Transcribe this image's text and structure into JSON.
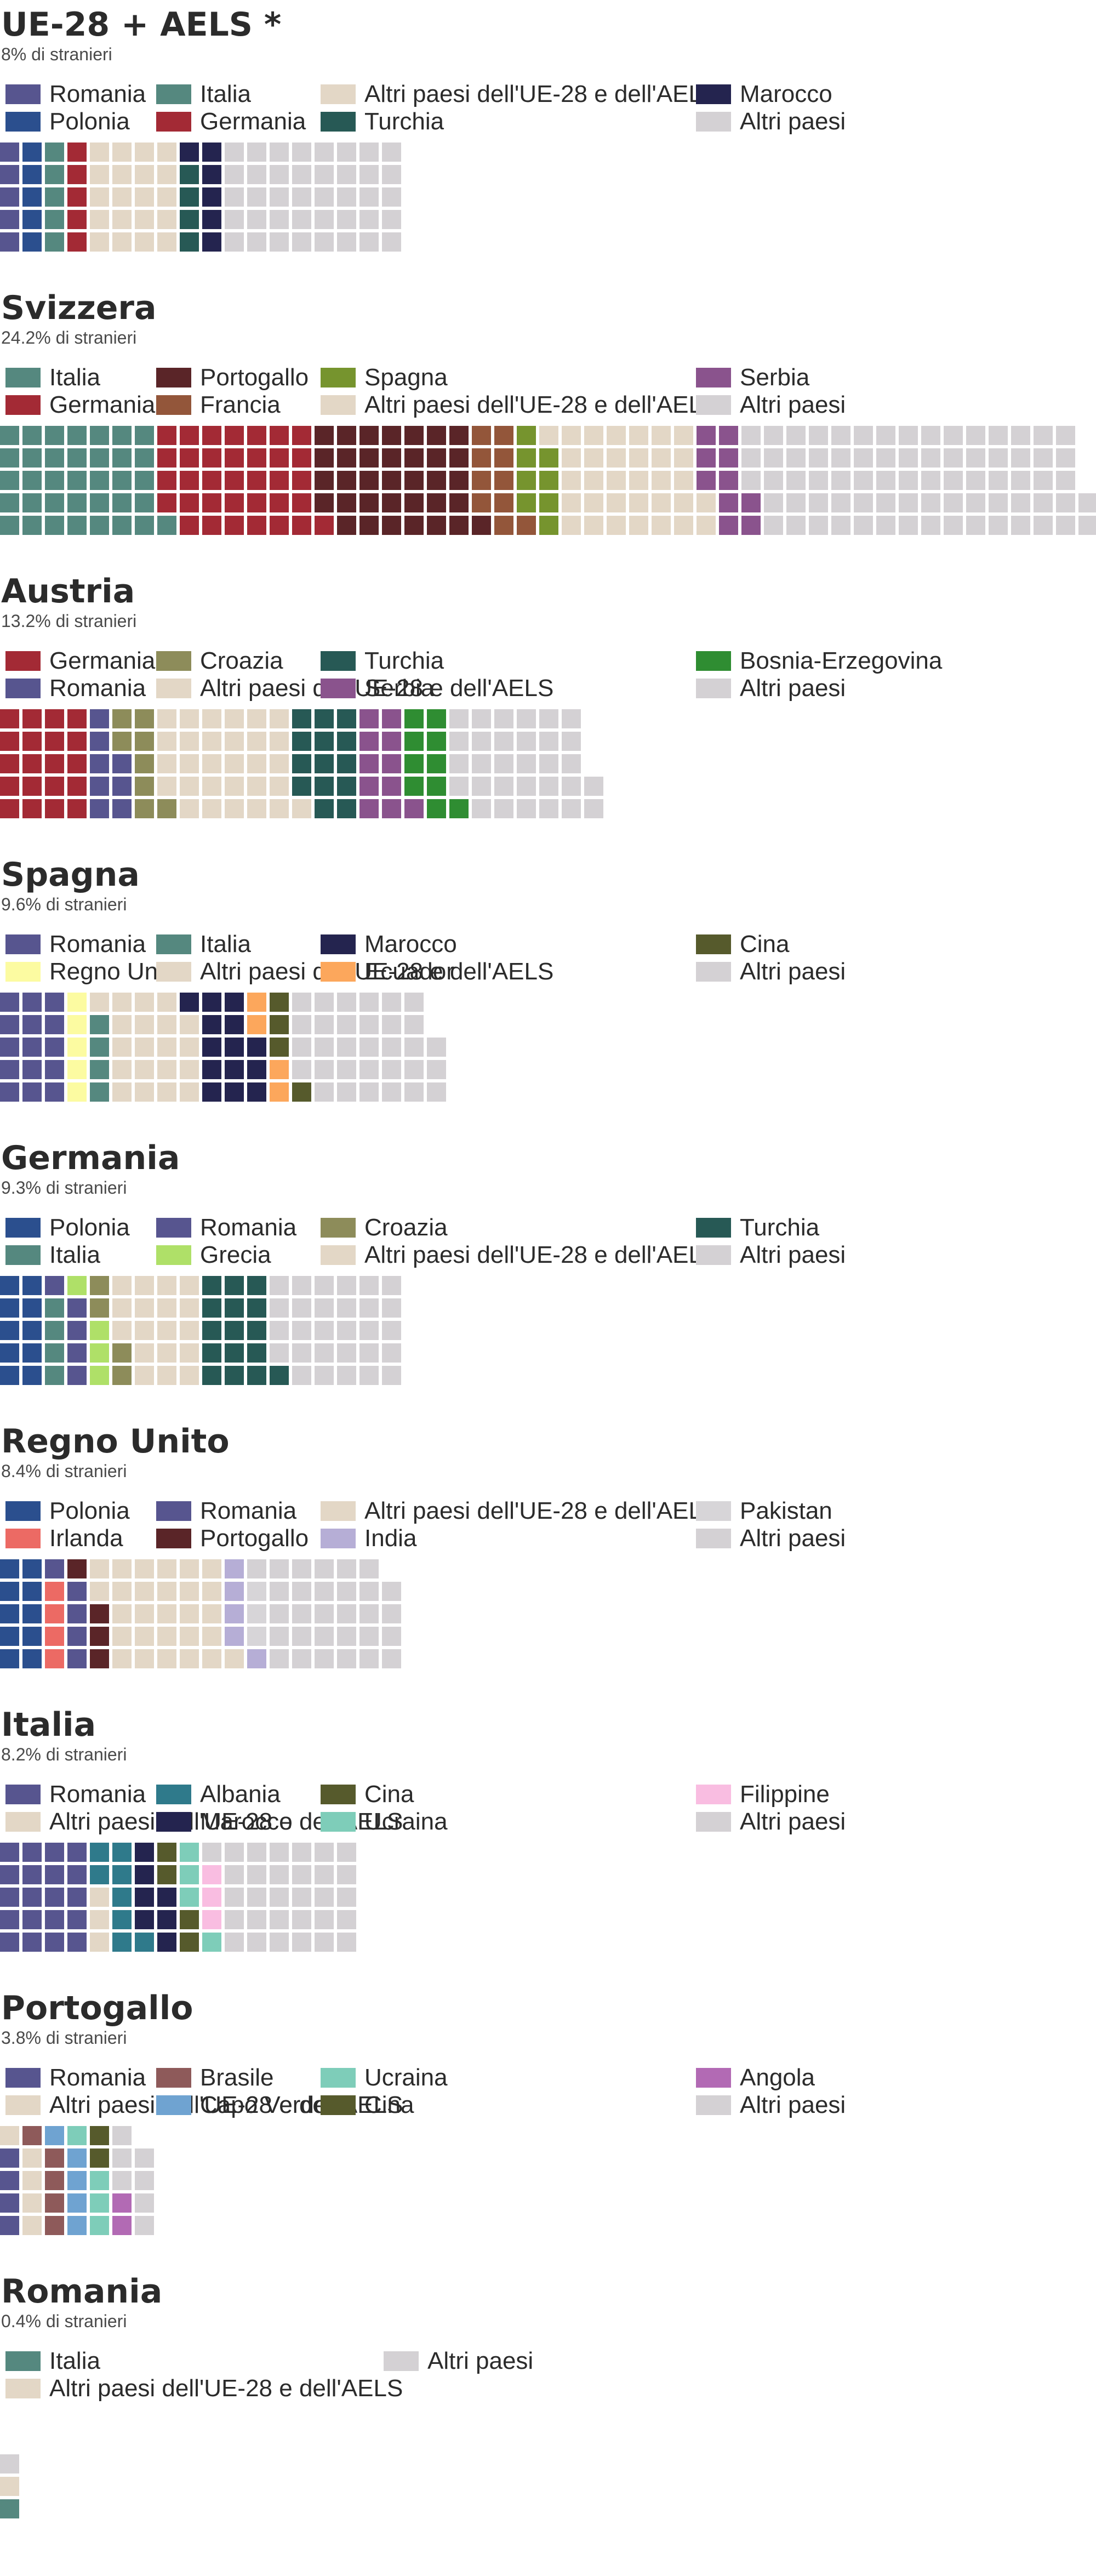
{
  "colors": {
    "Romania": "#57558f",
    "Polonia": "#2b4f8e",
    "Italia": "#55887f",
    "Germania": "#a32a35",
    "Altri paesi dell'UE-28 e dell'AELS": "#e3d7c6",
    "Turchia": "#275955",
    "Marocco": "#24244f",
    "Altri paesi": "#d4d1d4",
    "Portogallo": "#5a2528",
    "Francia": "#93563a",
    "Spagna": "#76942e",
    "Serbia": "#8a538d",
    "Croazia": "#8d8c5a",
    "Bosnia-Erzegovina": "#2f8d32",
    "Regno Unito": "#fcfba1",
    "Cina": "#565a2c",
    "Ecuador": "#fca75c",
    "Grecia": "#afe068",
    "Irlanda": "#ec6a64",
    "India": "#b6aed6",
    "Pakistan": "#d7d5d8",
    "Albania": "#2f7a8b",
    "Ucraina": "#7ecdb9",
    "Filippine": "#f9bde1",
    "Brasile": "#8e5a5a",
    "Capo Verde": "#6fa3d1",
    "Angola": "#b26ab4"
  },
  "panels": [
    {
      "title": "UE-28 + AELS *",
      "subtitle": "8% di stranieri",
      "legend": [
        [
          "Romania",
          "Polonia"
        ],
        [
          "Italia",
          "Germania"
        ],
        [
          "Altri paesi dell'UE-28 e dell'AELS",
          "Turchia"
        ],
        [
          "Marocco",
          "Altri paesi"
        ]
      ]
    },
    {
      "title": "Svizzera",
      "subtitle": "24.2% di stranieri",
      "legend": [
        [
          "Italia",
          "Germania"
        ],
        [
          "Portogallo",
          "Francia"
        ],
        [
          "Spagna",
          "Altri paesi dell'UE-28 e dell'AELS"
        ],
        [
          "Serbia",
          "Altri paesi"
        ]
      ]
    },
    {
      "title": "Austria",
      "subtitle": "13.2% di stranieri",
      "legend": [
        [
          "Germania",
          "Romania"
        ],
        [
          "Croazia",
          "Altri paesi dell'UE-28 e dell'AELS"
        ],
        [
          "Turchia",
          "Serbia"
        ],
        [
          "Bosnia-Erzegovina",
          "Altri paesi"
        ]
      ]
    },
    {
      "title": "Spagna",
      "subtitle": "9.6% di stranieri",
      "legend": [
        [
          "Romania",
          "Regno Unito"
        ],
        [
          "Italia",
          "Altri paesi dell'UE-28 e dell'AELS"
        ],
        [
          "Marocco",
          "Ecuador"
        ],
        [
          "Cina",
          "Altri paesi"
        ]
      ]
    },
    {
      "title": "Germania",
      "subtitle": "9.3% di stranieri",
      "legend": [
        [
          "Polonia",
          "Italia"
        ],
        [
          "Romania",
          "Grecia"
        ],
        [
          "Croazia",
          "Altri paesi dell'UE-28 e dell'AELS"
        ],
        [
          "Turchia",
          "Altri paesi"
        ]
      ]
    },
    {
      "title": "Regno Unito",
      "subtitle": "8.4% di stranieri",
      "legend": [
        [
          "Polonia",
          "Irlanda"
        ],
        [
          "Romania",
          "Portogallo"
        ],
        [
          "Altri paesi dell'UE-28 e dell'AELS",
          "India"
        ],
        [
          "Pakistan",
          "Altri paesi"
        ]
      ]
    },
    {
      "title": "Italia",
      "subtitle": "8.2% di stranieri",
      "legend": [
        [
          "Romania",
          "Altri paesi dell'UE-28 e dell'AELS"
        ],
        [
          "Albania",
          "Marocco"
        ],
        [
          "Cina",
          "Ucraina"
        ],
        [
          "Filippine",
          "Altri paesi"
        ]
      ]
    },
    {
      "title": "Portogallo",
      "subtitle": "3.8% di stranieri",
      "legend": [
        [
          "Romania",
          "Altri paesi dell'UE-28 e dell'AELS"
        ],
        [
          "Brasile",
          "Capo Verde"
        ],
        [
          "Ucraina",
          "Cina"
        ],
        [
          "Angola",
          "Altri paesi"
        ]
      ]
    },
    {
      "title": "Romania",
      "subtitle": "0.4% di stranieri",
      "legend": [
        [
          "Italia",
          "Altri paesi dell'UE-28 e dell'AELS"
        ],
        [
          "Altri paesi"
        ]
      ]
    }
  ],
  "chart_data": [
    {
      "type": "waffle",
      "title": "UE-28 + AELS *",
      "subtitle": "8% di stranieri",
      "unit_squares_per_column": 5,
      "series": [
        {
          "name": "Romania",
          "value": 5
        },
        {
          "name": "Polonia",
          "value": 5
        },
        {
          "name": "Italia",
          "value": 5
        },
        {
          "name": "Germania",
          "value": 5
        },
        {
          "name": "Altri paesi dell'UE-28 e dell'AELS",
          "value": 20
        },
        {
          "name": "Turchia",
          "value": 4
        },
        {
          "name": "Marocco",
          "value": 6
        },
        {
          "name": "Altri paesi",
          "value": 40
        }
      ]
    },
    {
      "type": "waffle",
      "title": "Svizzera",
      "subtitle": "24.2% di stranieri",
      "unit_squares_per_column": 5,
      "series": [
        {
          "name": "Italia",
          "value": 36
        },
        {
          "name": "Germania",
          "value": 35
        },
        {
          "name": "Portogallo",
          "value": 35
        },
        {
          "name": "Francia",
          "value": 10
        },
        {
          "name": "Spagna",
          "value": 8
        },
        {
          "name": "Altri paesi dell'UE-28 e dell'AELS",
          "value": 33
        },
        {
          "name": "Serbia",
          "value": 10
        },
        {
          "name": "Altri paesi",
          "value": 75
        }
      ]
    },
    {
      "type": "waffle",
      "title": "Austria",
      "subtitle": "13.2% di stranieri",
      "unit_squares_per_column": 5,
      "series": [
        {
          "name": "Germania",
          "value": 20
        },
        {
          "name": "Romania",
          "value": 8
        },
        {
          "name": "Croazia",
          "value": 8
        },
        {
          "name": "Altri paesi dell'UE-28 e dell'AELS",
          "value": 30
        },
        {
          "name": "Turchia",
          "value": 14
        },
        {
          "name": "Serbia",
          "value": 11
        },
        {
          "name": "Bosnia-Erzegovina",
          "value": 10
        },
        {
          "name": "Altri paesi",
          "value": 31
        }
      ]
    },
    {
      "type": "waffle",
      "title": "Spagna",
      "subtitle": "9.6% di stranieri",
      "unit_squares_per_column": 5,
      "series": [
        {
          "name": "Romania",
          "value": 15
        },
        {
          "name": "Regno Unito",
          "value": 5
        },
        {
          "name": "Italia",
          "value": 4
        },
        {
          "name": "Altri paesi dell'UE-28 e dell'AELS",
          "value": 20
        },
        {
          "name": "Marocco",
          "value": 14
        },
        {
          "name": "Ecuador",
          "value": 4
        },
        {
          "name": "Cina",
          "value": 4
        },
        {
          "name": "Altri paesi",
          "value": 32
        }
      ]
    },
    {
      "type": "waffle",
      "title": "Germania",
      "subtitle": "9.3% di stranieri",
      "unit_squares_per_column": 5,
      "series": [
        {
          "name": "Polonia",
          "value": 10
        },
        {
          "name": "Italia",
          "value": 4
        },
        {
          "name": "Romania",
          "value": 5
        },
        {
          "name": "Grecia",
          "value": 4
        },
        {
          "name": "Croazia",
          "value": 4
        },
        {
          "name": "Altri paesi dell'UE-28 e dell'AELS",
          "value": 18
        },
        {
          "name": "Turchia",
          "value": 16
        },
        {
          "name": "Altri paesi",
          "value": 29
        }
      ]
    },
    {
      "type": "waffle",
      "title": "Regno Unito",
      "subtitle": "8.4% di stranieri",
      "unit_squares_per_column": 5,
      "series": [
        {
          "name": "Polonia",
          "value": 10
        },
        {
          "name": "Irlanda",
          "value": 4
        },
        {
          "name": "Romania",
          "value": 5
        },
        {
          "name": "Portogallo",
          "value": 4
        },
        {
          "name": "Altri paesi dell'UE-28 e dell'AELS",
          "value": 28
        },
        {
          "name": "India",
          "value": 5
        },
        {
          "name": "Pakistan",
          "value": 3
        },
        {
          "name": "Altri paesi",
          "value": 30
        }
      ]
    },
    {
      "type": "waffle",
      "title": "Italia",
      "subtitle": "8.2% di stranieri",
      "unit_squares_per_column": 5,
      "series": [
        {
          "name": "Romania",
          "value": 20
        },
        {
          "name": "Altri paesi dell'UE-28 e dell'AELS",
          "value": 3
        },
        {
          "name": "Albania",
          "value": 8
        },
        {
          "name": "Marocco",
          "value": 7
        },
        {
          "name": "Cina",
          "value": 4
        },
        {
          "name": "Ucraina",
          "value": 4
        },
        {
          "name": "Filippine",
          "value": 3
        },
        {
          "name": "Altri paesi",
          "value": 31
        }
      ]
    },
    {
      "type": "waffle",
      "title": "Portogallo",
      "subtitle": "3.8% di stranieri",
      "unit_squares_per_column": 5,
      "series": [
        {
          "name": "Romania",
          "value": 4
        },
        {
          "name": "Altri paesi dell'UE-28 e dell'AELS",
          "value": 5
        },
        {
          "name": "Brasile",
          "value": 5
        },
        {
          "name": "Capo Verde",
          "value": 5
        },
        {
          "name": "Ucraina",
          "value": 4
        },
        {
          "name": "Cina",
          "value": 2
        },
        {
          "name": "Angola",
          "value": 2
        },
        {
          "name": "Altri paesi",
          "value": 7
        }
      ]
    },
    {
      "type": "waffle",
      "title": "Romania",
      "subtitle": "0.4% di stranieri",
      "unit_squares_per_column": 5,
      "series": [
        {
          "name": "Italia",
          "value": 1
        },
        {
          "name": "Altri paesi dell'UE-28 e dell'AELS",
          "value": 1
        },
        {
          "name": "Altri paesi",
          "value": 1
        }
      ]
    }
  ]
}
